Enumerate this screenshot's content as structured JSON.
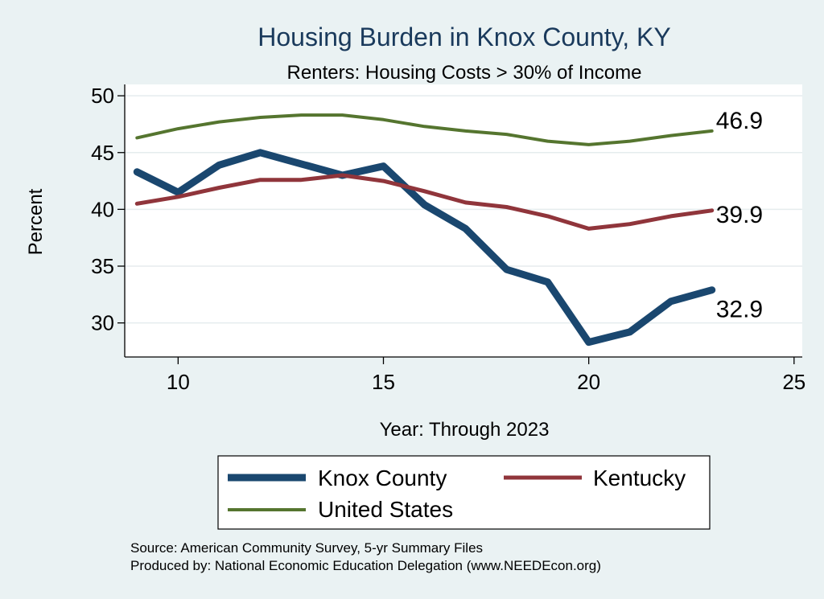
{
  "chart_data": {
    "type": "line",
    "title": "Housing Burden in Knox County, KY",
    "subtitle": "Renters: Housing Costs > 30% of Income",
    "xlabel": "Year: Through 2023",
    "ylabel": "Percent",
    "xlim": [
      8.7,
      25.2
    ],
    "ylim": [
      27,
      51
    ],
    "xticks": [
      10,
      15,
      20,
      25
    ],
    "yticks": [
      30,
      35,
      40,
      45,
      50
    ],
    "grid": true,
    "legend_position": "bottom",
    "series": [
      {
        "name": "Knox County",
        "color": "#1a476f",
        "width": "thick",
        "x": [
          9,
          10,
          11,
          12,
          13,
          14,
          15,
          16,
          17,
          18,
          19,
          20,
          21,
          22,
          23
        ],
        "y": [
          43.3,
          41.5,
          43.9,
          45.0,
          44.0,
          43.0,
          43.8,
          40.4,
          38.3,
          34.7,
          33.6,
          28.3,
          29.2,
          31.9,
          32.9
        ],
        "end_label": "32.9"
      },
      {
        "name": "Kentucky",
        "color": "#90353b",
        "width": "medium",
        "x": [
          9,
          10,
          11,
          12,
          13,
          14,
          15,
          16,
          17,
          18,
          19,
          20,
          21,
          22,
          23
        ],
        "y": [
          40.5,
          41.1,
          41.9,
          42.6,
          42.6,
          43.0,
          42.5,
          41.6,
          40.6,
          40.2,
          39.4,
          38.3,
          38.7,
          39.4,
          39.9
        ],
        "end_label": "39.9"
      },
      {
        "name": "United States",
        "color": "#55752f",
        "width": "thin",
        "x": [
          9,
          10,
          11,
          12,
          13,
          14,
          15,
          16,
          17,
          18,
          19,
          20,
          21,
          22,
          23
        ],
        "y": [
          46.3,
          47.1,
          47.7,
          48.1,
          48.3,
          48.3,
          47.9,
          47.3,
          46.9,
          46.6,
          46.0,
          45.7,
          46.0,
          46.5,
          46.9
        ],
        "end_label": "46.9"
      }
    ],
    "notes": [
      "Source: American Community Survey, 5-yr Summary Files",
      "Produced by: National Economic Education Delegation (www.NEEDEcon.org)"
    ]
  }
}
